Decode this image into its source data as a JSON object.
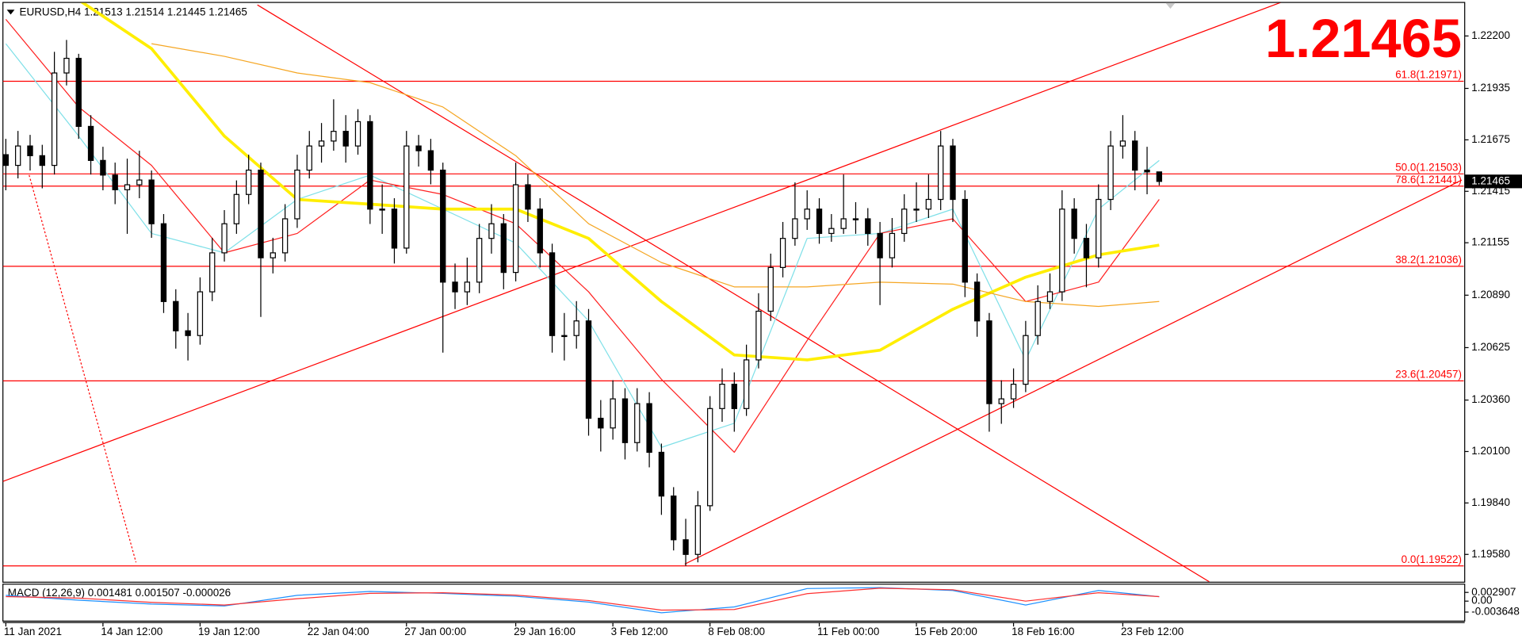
{
  "chart_data": [
    {
      "type": "candlestick",
      "title": "EURUSD,H4  1.21513 1.21514 1.21445 1.21465",
      "last": 1.21465,
      "up_color": "#ffffff",
      "down_color": "#000000",
      "line_color": "#000000",
      "ylim": [
        1.19442,
        1.22367
      ],
      "yticks": [
        {
          "value": 1.222,
          "label": "1.22200"
        },
        1.21935,
        {
          "value": 1.21675,
          "label": "1.21675"
        },
        1.21415,
        1.21155,
        {
          "value": 1.2089,
          "label": "1.20890"
        },
        1.20625,
        {
          "value": 1.2036,
          "label": "1.20360"
        },
        {
          "value": 1.201,
          "label": "1.20100"
        },
        {
          "value": 1.1984,
          "label": "1.19840"
        },
        {
          "value": 1.1958,
          "label": "1.19580"
        }
      ],
      "categories": [
        "11 Jan 2021",
        null,
        null,
        null,
        null,
        null,
        null,
        null,
        "14 Jan 12:00",
        null,
        null,
        null,
        null,
        null,
        null,
        null,
        "19 Jan 12:00",
        null,
        null,
        null,
        null,
        null,
        null,
        null,
        null,
        "22 Jan 04:00",
        null,
        null,
        null,
        null,
        null,
        null,
        null,
        "27 Jan 00:00",
        null,
        null,
        null,
        null,
        null,
        null,
        null,
        null,
        "29 Jan 16:00",
        null,
        null,
        null,
        null,
        null,
        null,
        null,
        "3 Feb 12:00",
        null,
        null,
        null,
        null,
        null,
        null,
        null,
        "8 Feb 08:00",
        null,
        null,
        null,
        null,
        null,
        null,
        null,
        null,
        "11 Feb 00:00",
        null,
        null,
        null,
        null,
        null,
        null,
        null,
        "15 Feb 20:00",
        null,
        null,
        null,
        null,
        null,
        null,
        null,
        "18 Feb 16:00",
        null,
        null,
        null,
        null,
        null,
        null,
        null,
        null,
        "23 Feb 12:00",
        null,
        null,
        null
      ],
      "open": [
        1.216,
        1.21546,
        1.21644,
        1.21595,
        1.21546,
        1.22013,
        1.22087,
        1.21743,
        1.21571,
        1.21497,
        1.21423,
        1.21448,
        1.21472,
        1.21251,
        1.20858,
        1.2071,
        1.20686,
        1.20907,
        1.21104,
        1.21251,
        1.21399,
        1.21522,
        1.21079,
        1.21104,
        1.21276,
        1.21522,
        1.21644,
        1.21669,
        1.21718,
        1.21644,
        1.21767,
        1.21325,
        1.21325,
        1.21128,
        1.21644,
        1.2162,
        1.21522,
        1.20956,
        1.20907,
        1.20956,
        1.21177,
        1.21251,
        1.21005,
        1.21448,
        1.21325,
        1.21104,
        1.20686,
        1.20686,
        1.2076,
        1.20268,
        1.20219,
        1.20366,
        1.20145,
        1.20342,
        1.20096,
        1.19875,
        1.19654,
        1.1958,
        1.19826,
        1.20317,
        1.2044,
        1.20317,
        1.20563,
        1.20809,
        1.2103,
        1.21177,
        1.21276,
        1.21325,
        1.21202,
        1.21227,
        1.21276,
        1.21276,
        1.21202,
        1.21079,
        1.21202,
        1.21325,
        1.21325,
        1.21374,
        1.21644,
        1.21374,
        1.20956,
        1.2076,
        1.20342,
        1.20366,
        1.2044,
        1.20686,
        1.20858,
        1.20907,
        1.21325,
        1.21177,
        1.21079,
        1.21374,
        1.21644,
        1.21669,
        1.21522,
        1.21513
      ],
      "high": [
        1.2168,
        1.2172,
        1.217,
        1.2165,
        1.2212,
        1.2218,
        1.2211,
        1.218,
        1.2164,
        1.2156,
        1.2158,
        1.2162,
        1.2152,
        1.213,
        1.2092,
        1.208,
        1.2098,
        1.2118,
        1.2132,
        1.2147,
        1.216,
        1.2156,
        1.2118,
        1.2135,
        1.216,
        1.2172,
        1.2176,
        1.2188,
        1.218,
        1.2183,
        1.218,
        1.2145,
        1.2138,
        1.2172,
        1.217,
        1.2168,
        1.2156,
        1.2105,
        1.2108,
        1.2125,
        1.2135,
        1.213,
        1.2156,
        1.215,
        1.2138,
        1.2115,
        1.208,
        1.2086,
        1.2082,
        1.2036,
        1.2046,
        1.2042,
        1.2042,
        1.204,
        1.2014,
        1.1992,
        1.1976,
        1.199,
        1.2038,
        1.2052,
        1.205,
        1.2064,
        1.209,
        1.211,
        1.2126,
        1.2146,
        1.2142,
        1.2138,
        1.213,
        1.215,
        1.2136,
        1.2133,
        1.2126,
        1.2128,
        1.214,
        1.2146,
        1.215,
        1.2172,
        1.2168,
        1.2142,
        1.21,
        1.208,
        1.2046,
        1.2052,
        1.2076,
        1.2094,
        1.21,
        1.2142,
        1.2138,
        1.2125,
        1.2145,
        1.2172,
        1.218,
        1.2172,
        1.2164,
        1.21514
      ],
      "low": [
        1.2142,
        1.2148,
        1.2152,
        1.2143,
        1.215,
        1.2195,
        1.2168,
        1.215,
        1.2142,
        1.2135,
        1.212,
        1.2138,
        1.2118,
        1.208,
        1.2062,
        1.2056,
        1.2064,
        1.2086,
        1.2106,
        1.212,
        1.2135,
        1.2078,
        1.21,
        1.2106,
        1.2123,
        1.2148,
        1.2156,
        1.2162,
        1.2156,
        1.216,
        1.2125,
        1.212,
        1.2105,
        1.211,
        1.2154,
        1.2145,
        1.206,
        1.2082,
        1.2084,
        1.209,
        1.211,
        1.2092,
        1.2096,
        1.2126,
        1.2103,
        1.206,
        1.2056,
        1.2062,
        1.2018,
        1.201,
        1.2016,
        1.2006,
        1.201,
        1.2002,
        1.1978,
        1.196,
        1.19522,
        1.1954,
        1.198,
        1.2025,
        1.202,
        1.2028,
        1.2052,
        1.2076,
        1.2098,
        1.2114,
        1.2122,
        1.2115,
        1.2116,
        1.212,
        1.212,
        1.2114,
        1.2084,
        1.2103,
        1.2116,
        1.2126,
        1.2128,
        1.2132,
        1.2126,
        1.2088,
        1.2068,
        1.202,
        1.2024,
        1.2032,
        1.204,
        1.2064,
        1.2082,
        1.2086,
        1.211,
        1.2093,
        1.2103,
        1.2132,
        1.2158,
        1.2142,
        1.214,
        1.21445
      ],
      "close": [
        1.21546,
        1.21644,
        1.21595,
        1.21546,
        1.22013,
        1.22087,
        1.21743,
        1.21571,
        1.21497,
        1.21423,
        1.21448,
        1.21472,
        1.21251,
        1.20858,
        1.2071,
        1.20686,
        1.20907,
        1.21104,
        1.21251,
        1.21399,
        1.21522,
        1.21079,
        1.21104,
        1.21276,
        1.21522,
        1.21644,
        1.21669,
        1.21718,
        1.21644,
        1.21767,
        1.21325,
        1.21325,
        1.21128,
        1.21644,
        1.2162,
        1.21522,
        1.20956,
        1.20907,
        1.20956,
        1.21177,
        1.21251,
        1.21005,
        1.21448,
        1.21325,
        1.21104,
        1.20686,
        1.20686,
        1.2076,
        1.20268,
        1.20219,
        1.20366,
        1.20145,
        1.20342,
        1.20096,
        1.19875,
        1.19654,
        1.1958,
        1.19826,
        1.20317,
        1.2044,
        1.20317,
        1.20563,
        1.20809,
        1.2103,
        1.21177,
        1.21276,
        1.21325,
        1.21202,
        1.21227,
        1.21276,
        1.21276,
        1.21202,
        1.21079,
        1.21202,
        1.21325,
        1.21325,
        1.21374,
        1.21644,
        1.21374,
        1.20956,
        1.2076,
        1.20342,
        1.20366,
        1.2044,
        1.20686,
        1.20858,
        1.20907,
        1.21325,
        1.21177,
        1.21079,
        1.21374,
        1.21644,
        1.21669,
        1.21522,
        1.21513,
        1.21465
      ],
      "lines": [
        {
          "color": "#7fe0e8",
          "width": 1,
          "x": [
            0,
            6,
            12,
            18,
            24,
            30,
            36,
            42,
            48,
            54,
            60,
            66,
            72,
            78,
            84,
            90,
            95
          ],
          "values": [
            1.22161,
            1.21694,
            1.21202,
            1.21104,
            1.21374,
            1.21497,
            1.21325,
            1.21153,
            1.2076,
            1.20121,
            1.20243,
            1.21177,
            1.21202,
            1.21325,
            1.20563,
            1.21325,
            1.21571
          ]
        },
        {
          "color": "#ff2020",
          "width": 1,
          "x": [
            0,
            6,
            12,
            18,
            24,
            30,
            36,
            42,
            48,
            54,
            60,
            66,
            72,
            78,
            84,
            90,
            95
          ],
          "values": [
            1.22284,
            1.21841,
            1.21546,
            1.21104,
            1.21202,
            1.21472,
            1.21399,
            1.21251,
            1.20907,
            1.20465,
            1.20096,
            1.20661,
            1.21202,
            1.21276,
            1.20858,
            1.20956,
            1.21374
          ]
        },
        {
          "color": "#ffee00",
          "width": 3,
          "x": [
            6,
            12,
            18,
            24,
            30,
            36,
            42,
            48,
            54,
            60,
            66,
            72,
            78,
            84,
            90,
            95
          ],
          "values": [
            1.22382,
            1.22136,
            1.21694,
            1.21374,
            1.2135,
            1.21325,
            1.21325,
            1.21177,
            1.20858,
            1.20588,
            1.20563,
            1.20612,
            1.20819,
            1.20981,
            1.21094,
            1.21143
          ]
        },
        {
          "color": "#f5a623",
          "width": 1,
          "x": [
            12,
            18,
            24,
            30,
            36,
            42,
            48,
            54,
            60,
            66,
            72,
            78,
            84,
            90,
            95
          ],
          "values": [
            1.22161,
            1.22097,
            1.22013,
            1.21964,
            1.21841,
            1.21595,
            1.21251,
            1.21055,
            1.20932,
            1.20932,
            1.20956,
            1.20946,
            1.20858,
            1.20833,
            1.20858
          ]
        }
      ],
      "trendlines": [
        {
          "color": "#ff0000",
          "dashed": false,
          "x": [
            -0.24,
            105.12
          ],
          "values": [
            1.19949,
            1.22372
          ]
        },
        {
          "color": "#ff0000",
          "dashed": false,
          "x": [
            55.92,
            119.92
          ],
          "values": [
            1.19531,
            1.21472
          ]
        },
        {
          "color": "#ff0000",
          "dashed": false,
          "x": [
            20.72,
            99.12
          ],
          "values": [
            1.22357,
            1.19442
          ]
        },
        {
          "color": "#ff0000",
          "dashed": true,
          "x": [
            1.92,
            10.72
          ],
          "values": [
            1.21497,
            1.1954
          ]
        }
      ],
      "fib_color": "#ff0000",
      "fib_levels": [
        {
          "label": "61.8(1.21971)",
          "value": 1.21971
        },
        {
          "label": "50.0(1.21503)",
          "value": 1.21503
        },
        {
          "label": "78.6(1.21441)",
          "value": 1.21441
        },
        {
          "label": "38.2(1.21036)",
          "value": 1.21036
        },
        {
          "label": "23.6(1.20457)",
          "value": 1.20457
        },
        {
          "label": "0.0(1.19522)",
          "value": 1.19522
        }
      ]
    },
    {
      "type": "line",
      "title": "MACD (12,26,9) 0.001481 0.001507 -0.000026",
      "ylim": [
        -0.0065,
        0.0055
      ],
      "yticks": [
        0.002907,
        {
          "value": 0,
          "label": "0.00"
        },
        -0.003648
      ],
      "series": [
        {
          "color": "#1e90ff",
          "x": [
            0,
            6,
            12,
            18,
            24,
            30,
            36,
            42,
            48,
            54,
            60,
            66,
            72,
            78,
            84,
            90,
            95
          ],
          "values": [
            0.00194,
            0.00032,
            -0.00097,
            -0.00161,
            0.00194,
            0.00323,
            0.00258,
            0.00162,
            -0.00032,
            -0.00388,
            -0.00194,
            0.0042,
            0.00452,
            0.00355,
            -0.00129,
            0.00355,
            0.001481
          ]
        },
        {
          "color": "#ff3030",
          "x": [
            0,
            6,
            12,
            18,
            24,
            30,
            36,
            42,
            48,
            54,
            60,
            66,
            72,
            78,
            84,
            90,
            95
          ],
          "values": [
            0.0015,
            0.001,
            -0.0004,
            -0.0013,
            0.0008,
            0.0026,
            0.0028,
            0.002,
            0.0002,
            -0.003,
            -0.0028,
            0.0025,
            0.0043,
            0.0038,
            0,
            0.0028,
            0.001507
          ]
        }
      ]
    }
  ]
}
